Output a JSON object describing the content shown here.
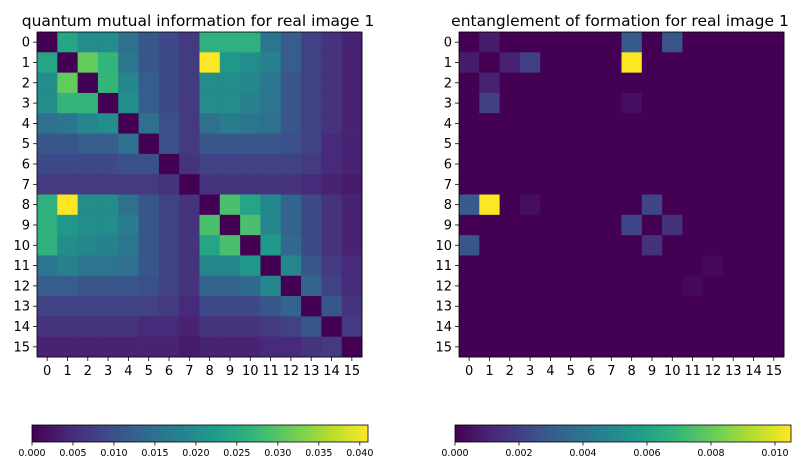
{
  "chart_data": [
    {
      "type": "heatmap",
      "title": "quantum mutual information for real image 1",
      "x_ticks": [
        "0",
        "1",
        "2",
        "3",
        "4",
        "5",
        "6",
        "7",
        "8",
        "9",
        "10",
        "11",
        "12",
        "13",
        "14",
        "15"
      ],
      "y_ticks": [
        "0",
        "1",
        "2",
        "3",
        "4",
        "5",
        "6",
        "7",
        "8",
        "9",
        "10",
        "11",
        "12",
        "13",
        "14",
        "15"
      ],
      "colormap": "viridis",
      "colorbar": {
        "orientation": "horizontal",
        "range": [
          0,
          0.041
        ],
        "ticks": [
          "0.000",
          "0.005",
          "0.010",
          "0.015",
          "0.020",
          "0.025",
          "0.030",
          "0.035",
          "0.040"
        ]
      },
      "values": [
        [
          0.0,
          0.024,
          0.02,
          0.02,
          0.015,
          0.011,
          0.009,
          0.007,
          0.026,
          0.026,
          0.026,
          0.016,
          0.012,
          0.008,
          0.006,
          0.004
        ],
        [
          0.024,
          0.0,
          0.031,
          0.027,
          0.016,
          0.011,
          0.009,
          0.007,
          0.041,
          0.022,
          0.02,
          0.018,
          0.012,
          0.008,
          0.006,
          0.004
        ],
        [
          0.02,
          0.031,
          0.0,
          0.027,
          0.019,
          0.012,
          0.009,
          0.007,
          0.02,
          0.02,
          0.019,
          0.016,
          0.011,
          0.008,
          0.006,
          0.004
        ],
        [
          0.02,
          0.027,
          0.027,
          0.0,
          0.02,
          0.012,
          0.009,
          0.007,
          0.02,
          0.02,
          0.018,
          0.016,
          0.011,
          0.008,
          0.006,
          0.004
        ],
        [
          0.015,
          0.016,
          0.019,
          0.02,
          0.0,
          0.015,
          0.01,
          0.007,
          0.015,
          0.017,
          0.016,
          0.015,
          0.011,
          0.008,
          0.006,
          0.004
        ],
        [
          0.011,
          0.011,
          0.012,
          0.012,
          0.015,
          0.0,
          0.01,
          0.007,
          0.011,
          0.011,
          0.011,
          0.011,
          0.01,
          0.008,
          0.005,
          0.004
        ],
        [
          0.009,
          0.009,
          0.009,
          0.009,
          0.01,
          0.01,
          0.0,
          0.006,
          0.008,
          0.008,
          0.008,
          0.008,
          0.008,
          0.007,
          0.005,
          0.004
        ],
        [
          0.007,
          0.007,
          0.007,
          0.007,
          0.007,
          0.007,
          0.006,
          0.0,
          0.006,
          0.006,
          0.006,
          0.006,
          0.006,
          0.005,
          0.004,
          0.003
        ],
        [
          0.026,
          0.041,
          0.02,
          0.02,
          0.015,
          0.011,
          0.008,
          0.006,
          0.0,
          0.029,
          0.024,
          0.019,
          0.013,
          0.009,
          0.006,
          0.004
        ],
        [
          0.026,
          0.022,
          0.02,
          0.02,
          0.017,
          0.011,
          0.008,
          0.006,
          0.029,
          0.0,
          0.029,
          0.019,
          0.013,
          0.009,
          0.006,
          0.004
        ],
        [
          0.026,
          0.02,
          0.019,
          0.018,
          0.016,
          0.011,
          0.008,
          0.006,
          0.024,
          0.029,
          0.0,
          0.022,
          0.014,
          0.009,
          0.006,
          0.004
        ],
        [
          0.016,
          0.018,
          0.016,
          0.016,
          0.015,
          0.011,
          0.008,
          0.006,
          0.019,
          0.019,
          0.022,
          0.0,
          0.019,
          0.011,
          0.007,
          0.005
        ],
        [
          0.012,
          0.012,
          0.011,
          0.011,
          0.011,
          0.01,
          0.008,
          0.006,
          0.013,
          0.013,
          0.014,
          0.019,
          0.0,
          0.013,
          0.008,
          0.005
        ],
        [
          0.008,
          0.008,
          0.008,
          0.008,
          0.008,
          0.008,
          0.007,
          0.005,
          0.009,
          0.009,
          0.009,
          0.011,
          0.013,
          0.0,
          0.011,
          0.006
        ],
        [
          0.006,
          0.006,
          0.006,
          0.006,
          0.006,
          0.005,
          0.005,
          0.004,
          0.006,
          0.006,
          0.006,
          0.007,
          0.008,
          0.011,
          0.0,
          0.007
        ],
        [
          0.004,
          0.004,
          0.004,
          0.004,
          0.004,
          0.004,
          0.004,
          0.003,
          0.004,
          0.004,
          0.004,
          0.005,
          0.005,
          0.006,
          0.007,
          0.0
        ]
      ]
    },
    {
      "type": "heatmap",
      "title": "entanglement of formation for real image 1",
      "x_ticks": [
        "0",
        "1",
        "2",
        "3",
        "4",
        "5",
        "6",
        "7",
        "8",
        "9",
        "10",
        "11",
        "12",
        "13",
        "14",
        "15"
      ],
      "y_ticks": [
        "0",
        "1",
        "2",
        "3",
        "4",
        "5",
        "6",
        "7",
        "8",
        "9",
        "10",
        "11",
        "12",
        "13",
        "14",
        "15"
      ],
      "colormap": "viridis",
      "colorbar": {
        "orientation": "horizontal",
        "range": [
          0,
          0.0105
        ],
        "ticks": [
          "0.000",
          "0.002",
          "0.004",
          "0.006",
          "0.008",
          "0.010"
        ]
      },
      "values": [
        [
          0,
          0.0008,
          0,
          0,
          0,
          0,
          0,
          0,
          0.003,
          0,
          0.0028,
          0,
          0,
          0,
          0,
          0
        ],
        [
          0.0008,
          0,
          0.001,
          0.002,
          0,
          0,
          0,
          0,
          0.0105,
          0,
          0,
          0,
          0,
          0,
          0,
          0
        ],
        [
          0,
          0.001,
          0,
          0,
          0,
          0,
          0,
          0,
          0,
          0,
          0,
          0,
          0,
          0,
          0,
          0
        ],
        [
          0,
          0.002,
          0,
          0,
          0,
          0,
          0,
          0,
          0.0004,
          0,
          0,
          0,
          0,
          0,
          0,
          0
        ],
        [
          0,
          0,
          0,
          0,
          0,
          0,
          0,
          0,
          0,
          0,
          0,
          0,
          0,
          0,
          0,
          0
        ],
        [
          0,
          0,
          0,
          0,
          0,
          0,
          0,
          0,
          0,
          0,
          0,
          0,
          0,
          0,
          0,
          0
        ],
        [
          0,
          0,
          0,
          0,
          0,
          0,
          0,
          0,
          0,
          0,
          0,
          0,
          0,
          0,
          0,
          0
        ],
        [
          0,
          0,
          0,
          0,
          0,
          0,
          0,
          0,
          0,
          0,
          0,
          0,
          0,
          0,
          0,
          0
        ],
        [
          0.003,
          0.0105,
          0,
          0.0004,
          0,
          0,
          0,
          0,
          0,
          0.0022,
          0,
          0,
          0,
          0,
          0,
          0
        ],
        [
          0,
          0,
          0,
          0,
          0,
          0,
          0,
          0,
          0.0022,
          0,
          0.0015,
          0,
          0,
          0,
          0,
          0
        ],
        [
          0.0028,
          0,
          0,
          0,
          0,
          0,
          0,
          0,
          0,
          0.0015,
          0,
          0,
          0,
          0,
          0,
          0
        ],
        [
          0,
          0,
          0,
          0,
          0,
          0,
          0,
          0,
          0,
          0,
          0,
          0,
          0.0002,
          0,
          0,
          0
        ],
        [
          0,
          0,
          0,
          0,
          0,
          0,
          0,
          0,
          0,
          0,
          0,
          0.0002,
          0,
          0,
          0,
          0
        ],
        [
          0,
          0,
          0,
          0,
          0,
          0,
          0,
          0,
          0,
          0,
          0,
          0,
          0,
          0,
          0,
          0
        ],
        [
          0,
          0,
          0,
          0,
          0,
          0,
          0,
          0,
          0,
          0,
          0,
          0,
          0,
          0,
          0,
          0
        ],
        [
          0,
          0,
          0,
          0,
          0,
          0,
          0,
          0,
          0,
          0,
          0,
          0,
          0,
          0,
          0,
          0
        ]
      ]
    }
  ]
}
